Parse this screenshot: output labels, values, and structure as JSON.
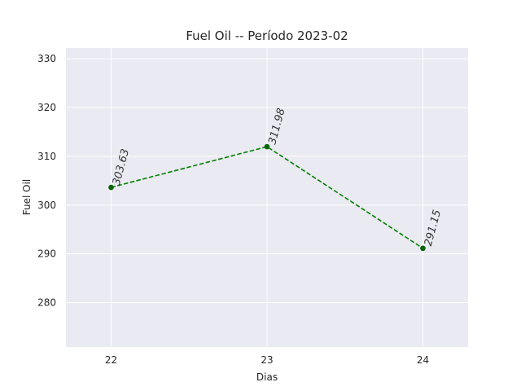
{
  "chart_data": {
    "type": "line",
    "title": "Fuel Oil -- Período 2023-02",
    "xlabel": "Dias",
    "ylabel": "Fuel Oil",
    "x": [
      22,
      23,
      24
    ],
    "xticks": [
      "22",
      "23",
      "24"
    ],
    "xlim": [
      21.71,
      24.29
    ],
    "ylim": [
      270.9,
      332.2
    ],
    "yticks": [
      280,
      290,
      300,
      310,
      320,
      330
    ],
    "grid": true,
    "series": [
      {
        "values": [
          303.63,
          311.98,
          291.15
        ],
        "labels": [
          "303.63",
          "311.98",
          "291.15"
        ],
        "color": "#008000",
        "line_style": "dashed",
        "marker": "circle"
      }
    ],
    "colors": {
      "plot_background": "#eaeaf2",
      "grid": "#ffffff",
      "line": "#008000",
      "marker": "#006400"
    }
  }
}
